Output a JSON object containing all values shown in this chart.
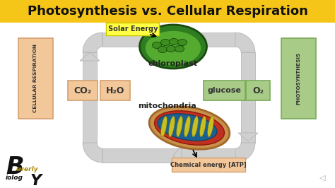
{
  "title": "Photosynthesis vs. Cellular Respiration",
  "title_bg": "#F5C518",
  "title_color": "#111111",
  "bg_color": "#ffffff",
  "arrow_fill": "#d0d0d0",
  "arrow_edge": "#b0b0b0",
  "left_label": "CELLULAR RESPIRATION",
  "right_label": "PHOTOSYNTHESIS",
  "left_label_bg": "#f2c89a",
  "left_label_edge": "#d4a070",
  "right_label_bg": "#a8cc88",
  "right_label_edge": "#78aa58",
  "solar_label": "Solar Energy",
  "solar_bg": "#ffff44",
  "solar_edge": "#cccc00",
  "chloroplast_label": "chloroplast",
  "mito_label": "mitochondria",
  "co2_label": "CO₂",
  "h2o_label": "H₂O",
  "glucose_label": "glucose",
  "o2_label": "O₂",
  "atp_label": "Chemical energy [ATP]",
  "atp_bg": "#f2c89a",
  "atp_edge": "#d4a070",
  "box_left_bg": "#f2c89a",
  "box_left_edge": "#d4a070",
  "box_right_bg": "#a8cc88",
  "box_right_edge": "#78aa58"
}
